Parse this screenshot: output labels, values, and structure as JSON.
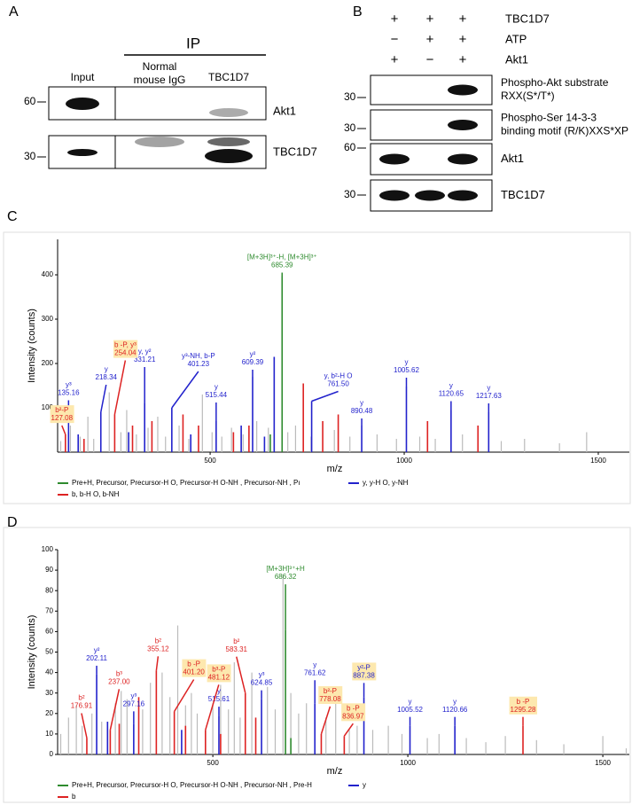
{
  "panel_a": {
    "label": "A",
    "ip": "IP",
    "columns": [
      "Input",
      [
        "Normal",
        "mouse IgG"
      ],
      "TBC1D7"
    ],
    "markers": [
      "60",
      "30"
    ],
    "rows": [
      "Akt1",
      "TBC1D7"
    ]
  },
  "panel_b": {
    "label": "B",
    "conditions": [
      {
        "name": "TBC1D7",
        "signs": [
          "+",
          "+",
          "+"
        ]
      },
      {
        "name": "ATP",
        "signs": [
          "−",
          "+",
          "+"
        ]
      },
      {
        "name": "Akt1",
        "signs": [
          "+",
          "−",
          "+"
        ]
      }
    ],
    "rows": [
      {
        "label": [
          "Phospho-Akt substrate",
          "RXX(S*/T*)"
        ],
        "marker": "30"
      },
      {
        "label": [
          "Phospho-Ser 14-3-3",
          "binding motif  (R/K)XXS*XP"
        ],
        "marker": "30"
      },
      {
        "label": [
          "Akt1"
        ],
        "marker": "60"
      },
      {
        "label": [
          "TBC1D7"
        ],
        "marker": "30"
      }
    ]
  },
  "chart_data": [
    {
      "type": "stem",
      "panel": "C",
      "xlabel": "m/z",
      "ylabel": "Intensity (counts)",
      "xlim": [
        107,
        1580
      ],
      "ylim": [
        0,
        480
      ],
      "xticks": [
        500,
        1000,
        1500
      ],
      "yticks": [
        100,
        200,
        300,
        400
      ],
      "series": [
        {
          "name": "Pre+H, Precursor, Precursor-H O, Precursor-H O-NH , Precursor-NH , Pı",
          "color": "#2e8b2e",
          "x": [
            685.39,
            655
          ],
          "values": [
            397,
            40
          ],
          "labels": [
            {
              "ion": "[M+3H]³⁺-H, [M+3H]³⁺",
              "mz": "685.39"
            },
            null
          ]
        },
        {
          "name": "y, y-H O, y-NH",
          "color": "#2222cc",
          "x": [
            135.16,
            160,
            218.34,
            290,
            331.21,
            401.23,
            450,
            515.44,
            580,
            609.39,
            640,
            665,
            761.5,
            890.48,
            1005.62,
            1120.65,
            1217.63
          ],
          "values": [
            45,
            40,
            90,
            45,
            110,
            100,
            40,
            70,
            60,
            170,
            35,
            215,
            115,
            60,
            148,
            95,
            90
          ],
          "labels": [
            {
              "ion": "y³",
              "mz": "135.16"
            },
            null,
            {
              "ion": "y",
              "mz": "218.34"
            },
            null,
            {
              "ion": "y, y²",
              "mz": "331.21"
            },
            {
              "ion": "y³-NH, b-P",
              "mz": "401.23"
            },
            null,
            {
              "ion": "y",
              "mz": "515.44"
            },
            null,
            {
              "ion": "y²",
              "mz": "609.39"
            },
            null,
            null,
            {
              "ion": "y, b²-H O",
              "mz": "761.50"
            },
            {
              "ion": "y",
              "mz": "890.48"
            },
            {
              "ion": "y",
              "mz": "1005.62"
            },
            {
              "ion": "y",
              "mz": "1120.65"
            },
            {
              "ion": "y",
              "mz": "1217.63"
            }
          ]
        },
        {
          "name": "b, b-H O, b-NH",
          "color": "#dd2222",
          "x": [
            127.08,
            175,
            254.04,
            300,
            350,
            430,
            470,
            560,
            600,
            740,
            790,
            830,
            1060,
            1190
          ],
          "values": [
            40,
            30,
            85,
            60,
            70,
            85,
            60,
            45,
            60,
            155,
            70,
            85,
            70,
            60
          ],
          "labels": [
            {
              "ion": "b²-P",
              "mz": "127.08",
              "boxed": true
            },
            null,
            {
              "ion": "b -P, y³",
              "mz": "254.04",
              "boxed": true
            },
            null,
            null,
            null,
            null,
            null,
            null,
            null,
            null,
            null,
            null,
            null
          ]
        },
        {
          "color": "#bbbbbb",
          "x": [
            115,
            140,
            165,
            185,
            200,
            240,
            270,
            285,
            310,
            340,
            365,
            385,
            420,
            445,
            480,
            505,
            530,
            555,
            585,
            620,
            650,
            700,
            720,
            760,
            820,
            860,
            930,
            980,
            1040,
            1080,
            1150,
            1250,
            1310,
            1400,
            1470
          ],
          "values": [
            25,
            60,
            35,
            80,
            30,
            135,
            45,
            95,
            40,
            55,
            80,
            35,
            60,
            30,
            130,
            45,
            35,
            55,
            40,
            70,
            55,
            45,
            60,
            35,
            50,
            35,
            40,
            30,
            35,
            30,
            40,
            25,
            30,
            20,
            45
          ]
        }
      ]
    },
    {
      "type": "stem",
      "panel": "D",
      "xlabel": "m/z",
      "ylabel": "Intensity (counts)",
      "xlim": [
        102,
        1568
      ],
      "ylim": [
        0,
        100
      ],
      "xticks": [
        500,
        1000,
        1500
      ],
      "yticks": [
        0,
        10,
        20,
        30,
        40,
        50,
        60,
        70,
        80,
        90,
        100
      ],
      "series": [
        {
          "name": "Pre+H, Precursor, Precursor-H O, Precursor-H O-NH , Precursor-NH , Pre-H",
          "color": "#2e8b2e",
          "x": [
            686.32,
            700
          ],
          "values": [
            61,
            8
          ],
          "labels": [
            {
              "ion": "[M+3H]³⁺+H",
              "mz": "686.32"
            },
            null
          ]
        },
        {
          "name": "y",
          "color": "#2222cc",
          "x": [
            202.11,
            230,
            297.16,
            420,
            515.61,
            624.85,
            761.62,
            887.38,
            1005.52,
            1120.66
          ],
          "values": [
            39,
            16,
            15,
            12,
            19,
            27,
            25,
            28,
            14,
            14
          ],
          "labels": [
            {
              "ion": "y²",
              "mz": "202.11"
            },
            null,
            {
              "ion": "y³",
              "mz": "297.16"
            },
            null,
            {
              "ion": "y",
              "mz": "515.61"
            },
            {
              "ion": "y³",
              "mz": "624.85"
            },
            {
              "ion": "y",
              "mz": "761.62"
            },
            {
              "ion": "y²-P",
              "mz": "887.38",
              "boxed": true
            },
            {
              "ion": "y",
              "mz": "1005.52"
            },
            {
              "ion": "y",
              "mz": "1120.66"
            }
          ]
        },
        {
          "name": "b",
          "color": "#dd2222",
          "x": [
            176.91,
            237.0,
            260,
            310,
            355.12,
            401.2,
            430,
            481.12,
            520,
            583.31,
            610,
            778.08,
            836.97,
            1295.28
          ],
          "values": [
            8,
            12,
            15,
            28,
            41,
            21,
            14,
            12,
            10,
            30,
            18,
            10,
            9,
            14
          ],
          "labels": [
            {
              "ion": "b²",
              "mz": "176.91"
            },
            {
              "ion": "b³",
              "mz": "237.00"
            },
            null,
            null,
            {
              "ion": "b²",
              "mz": "355.12"
            },
            {
              "ion": "b -P",
              "mz": "401.20",
              "boxed": true
            },
            null,
            {
              "ion": "b³-P",
              "mz": "481.12",
              "boxed": true
            },
            null,
            {
              "ion": "b²",
              "mz": "583.31"
            },
            null,
            {
              "ion": "b²-P",
              "mz": "778.08",
              "boxed": true
            },
            {
              "ion": "b -P",
              "mz": "836.97",
              "boxed": true
            },
            {
              "ion": "b -P",
              "mz": "1295.28",
              "boxed": true
            }
          ]
        },
        {
          "color": "#bbbbbb",
          "x": [
            110,
            130,
            150,
            165,
            190,
            215,
            250,
            265,
            280,
            320,
            340,
            370,
            390,
            410,
            430,
            445,
            460,
            500,
            520,
            540,
            555,
            570,
            600,
            640,
            660,
            680,
            700,
            720,
            740,
            790,
            815,
            850,
            870,
            910,
            950,
            985,
            1050,
            1080,
            1150,
            1200,
            1250,
            1330,
            1400,
            1500,
            1560
          ],
          "values": [
            10,
            18,
            24,
            14,
            20,
            16,
            25,
            31,
            27,
            22,
            35,
            40,
            28,
            63,
            24,
            30,
            20,
            25,
            34,
            22,
            45,
            18,
            40,
            33,
            22,
            88,
            30,
            20,
            25,
            18,
            30,
            12,
            14,
            12,
            14,
            10,
            8,
            10,
            8,
            6,
            9,
            7,
            5,
            9,
            3
          ]
        }
      ]
    }
  ]
}
